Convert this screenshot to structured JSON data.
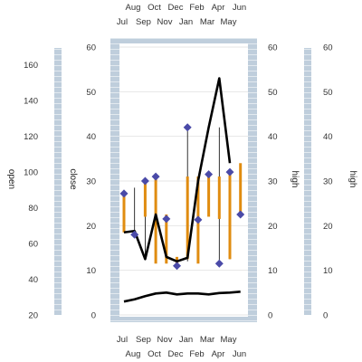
{
  "chart_data": {
    "type": "line",
    "title": "",
    "categories": [
      "Jul",
      "Aug",
      "Sep",
      "Oct",
      "Nov",
      "Dec",
      "Jan",
      "Feb",
      "Mar",
      "Apr",
      "May",
      "Jun"
    ],
    "axes": {
      "x": {
        "bottom_upper_ticks": [
          "Jul",
          "Sep",
          "Nov",
          "Jan",
          "Mar",
          "May"
        ],
        "bottom_lower_ticks": [
          "Aug",
          "Oct",
          "Dec",
          "Feb",
          "Apr",
          "Jun"
        ],
        "top_upper_ticks": [
          "Aug",
          "Oct",
          "Dec",
          "Feb",
          "Apr",
          "Jun"
        ],
        "top_lower_ticks": [
          "Jul",
          "Sep",
          "Nov",
          "Jan",
          "Mar",
          "May"
        ]
      },
      "y_open": {
        "label": "open",
        "range": [
          20,
          170
        ],
        "ticks": [
          20,
          40,
          60,
          80,
          100,
          120,
          140,
          160
        ]
      },
      "y_close": {
        "label": "close",
        "range": [
          0,
          60
        ],
        "ticks": [
          0,
          10,
          20,
          30,
          40,
          50,
          60
        ]
      },
      "y_high_inner": {
        "label": "high",
        "range": [
          0,
          60
        ],
        "ticks": [
          0,
          10,
          20,
          30,
          40,
          50,
          60
        ]
      },
      "y_high_outer": {
        "label": "high",
        "range": [
          0,
          60
        ],
        "ticks": [
          0,
          10,
          20,
          30,
          40,
          50,
          60
        ]
      }
    },
    "series": [
      {
        "kind": "line",
        "axis": "close",
        "color": "#000000",
        "values": [
          18.5,
          18.8,
          12.5,
          22.5,
          13,
          12,
          12.8,
          30,
          42,
          53,
          34,
          null
        ]
      },
      {
        "kind": "line",
        "axis": "close",
        "color": "#000000",
        "values": [
          3,
          3.5,
          4.2,
          4.8,
          5,
          4.6,
          4.8,
          4.8,
          4.6,
          4.9,
          5,
          5.2
        ]
      },
      {
        "kind": "markers",
        "axis": "close",
        "color": "#4a4aa8",
        "values": [
          27.2,
          18,
          30,
          31,
          21.5,
          11,
          42,
          21.3,
          31.5,
          11.5,
          32,
          22.5
        ]
      },
      {
        "kind": "range_bars",
        "axis": "close",
        "color": "#e08c10",
        "ranges": [
          [
            18.5,
            27.2
          ],
          [
            18,
            18.8
          ],
          [
            22,
            30
          ],
          [
            11.5,
            31
          ],
          [
            11.5,
            22.5
          ],
          [
            11,
            13
          ],
          [
            12.5,
            31
          ],
          [
            11.5,
            31
          ],
          [
            22,
            31
          ],
          [
            21.5,
            31
          ],
          [
            12.5,
            32
          ],
          [
            22.5,
            34
          ]
        ]
      },
      {
        "kind": "whiskers",
        "axis": "close",
        "color": "#000000",
        "ranges": [
          [
            18.5,
            28
          ],
          [
            18,
            28.5
          ],
          [
            12.5,
            22
          ],
          [
            12,
            31
          ],
          [
            12,
            22.5
          ],
          [
            11,
            12.5
          ],
          [
            12,
            42
          ],
          [
            21.3,
            31
          ],
          [
            30,
            31.5
          ],
          [
            11.5,
            42
          ],
          [
            12.5,
            32
          ],
          [
            22.5,
            33
          ]
        ]
      }
    ],
    "grid": true,
    "legend": "none"
  }
}
